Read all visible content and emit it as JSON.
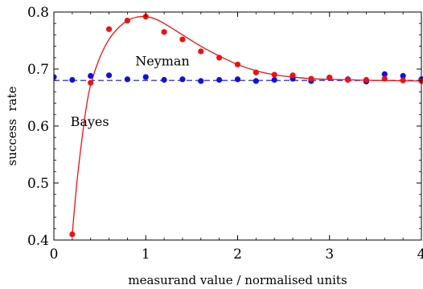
{
  "chart_data": {
    "type": "scatter",
    "xlabel": "measurand value / normalised units",
    "ylabel": "success  rate",
    "xlim": [
      0,
      4
    ],
    "ylim": [
      0.4,
      0.8
    ],
    "x_ticks": [
      "0",
      "1",
      "2",
      "3",
      "4"
    ],
    "y_ticks": [
      "0.4",
      "0.5",
      "0.6",
      "0.7",
      "0.8"
    ],
    "grid": false,
    "annotations": [
      {
        "text": "Neyman",
        "series": "Neyman"
      },
      {
        "text": "Bayes",
        "series": "Bayes"
      }
    ],
    "series": [
      {
        "name": "Bayes",
        "color": "#ee1111",
        "marker": "circle",
        "points": [
          {
            "x": 0.2,
            "y": 0.41
          },
          {
            "x": 0.4,
            "y": 0.676
          },
          {
            "x": 0.6,
            "y": 0.77
          },
          {
            "x": 0.8,
            "y": 0.785
          },
          {
            "x": 1.0,
            "y": 0.792
          },
          {
            "x": 1.2,
            "y": 0.765
          },
          {
            "x": 1.4,
            "y": 0.752
          },
          {
            "x": 1.6,
            "y": 0.731
          },
          {
            "x": 1.8,
            "y": 0.72
          },
          {
            "x": 2.0,
            "y": 0.708
          },
          {
            "x": 2.2,
            "y": 0.694
          },
          {
            "x": 2.4,
            "y": 0.69
          },
          {
            "x": 2.6,
            "y": 0.689
          },
          {
            "x": 2.8,
            "y": 0.683
          },
          {
            "x": 3.0,
            "y": 0.685
          },
          {
            "x": 3.2,
            "y": 0.681
          },
          {
            "x": 3.4,
            "y": 0.681
          },
          {
            "x": 3.6,
            "y": 0.683
          },
          {
            "x": 3.8,
            "y": 0.68
          },
          {
            "x": 4.0,
            "y": 0.679
          }
        ],
        "fit_curve": [
          {
            "x": 0.2,
            "y": 0.41
          },
          {
            "x": 0.25,
            "y": 0.5
          },
          {
            "x": 0.3,
            "y": 0.57
          },
          {
            "x": 0.35,
            "y": 0.63
          },
          {
            "x": 0.4,
            "y": 0.672
          },
          {
            "x": 0.5,
            "y": 0.72
          },
          {
            "x": 0.6,
            "y": 0.752
          },
          {
            "x": 0.7,
            "y": 0.772
          },
          {
            "x": 0.8,
            "y": 0.785
          },
          {
            "x": 0.9,
            "y": 0.791
          },
          {
            "x": 1.0,
            "y": 0.792
          },
          {
            "x": 1.1,
            "y": 0.788
          },
          {
            "x": 1.2,
            "y": 0.78
          },
          {
            "x": 1.4,
            "y": 0.76
          },
          {
            "x": 1.6,
            "y": 0.74
          },
          {
            "x": 1.8,
            "y": 0.723
          },
          {
            "x": 2.0,
            "y": 0.708
          },
          {
            "x": 2.2,
            "y": 0.697
          },
          {
            "x": 2.4,
            "y": 0.69
          },
          {
            "x": 2.6,
            "y": 0.686
          },
          {
            "x": 2.8,
            "y": 0.683
          },
          {
            "x": 3.0,
            "y": 0.682
          },
          {
            "x": 3.5,
            "y": 0.68
          },
          {
            "x": 4.0,
            "y": 0.679
          }
        ]
      },
      {
        "name": "Neyman",
        "color": "#1111dd",
        "marker": "circle",
        "reference_line": 0.68,
        "points": [
          {
            "x": 0.0,
            "y": 0.686
          },
          {
            "x": 0.2,
            "y": 0.681
          },
          {
            "x": 0.4,
            "y": 0.688
          },
          {
            "x": 0.6,
            "y": 0.689
          },
          {
            "x": 0.8,
            "y": 0.682
          },
          {
            "x": 1.0,
            "y": 0.686
          },
          {
            "x": 1.2,
            "y": 0.681
          },
          {
            "x": 1.4,
            "y": 0.682
          },
          {
            "x": 1.6,
            "y": 0.679
          },
          {
            "x": 1.8,
            "y": 0.681
          },
          {
            "x": 2.0,
            "y": 0.682
          },
          {
            "x": 2.2,
            "y": 0.679
          },
          {
            "x": 2.4,
            "y": 0.681
          },
          {
            "x": 2.6,
            "y": 0.683
          },
          {
            "x": 2.8,
            "y": 0.679
          },
          {
            "x": 3.0,
            "y": 0.685
          },
          {
            "x": 3.2,
            "y": 0.682
          },
          {
            "x": 3.4,
            "y": 0.678
          },
          {
            "x": 3.6,
            "y": 0.691
          },
          {
            "x": 3.8,
            "y": 0.688
          },
          {
            "x": 4.0,
            "y": 0.682
          }
        ]
      }
    ]
  }
}
